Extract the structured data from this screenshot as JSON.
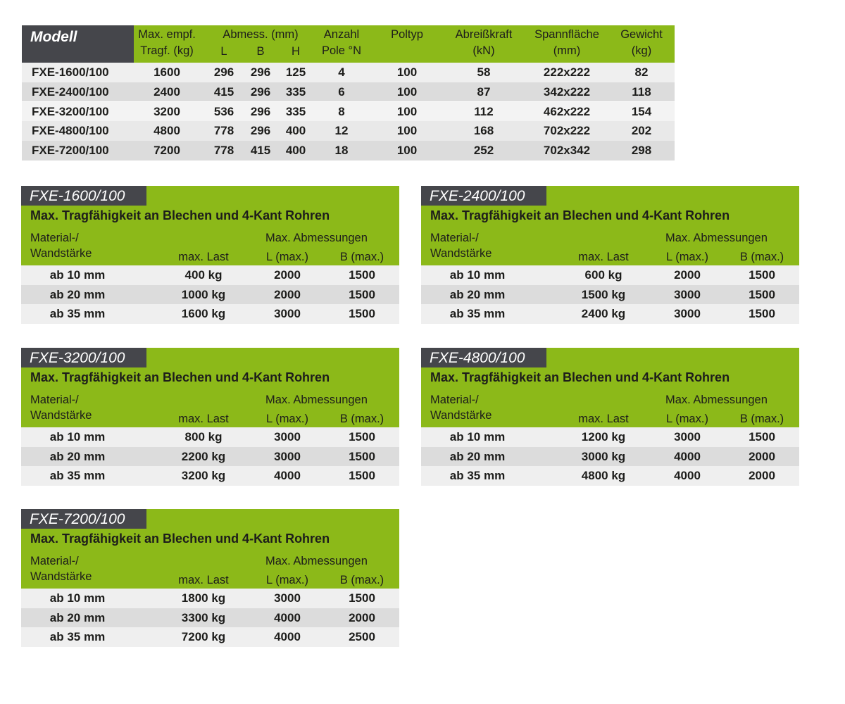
{
  "colors": {
    "green": "#8cb919",
    "dark": "#45464b",
    "row_light": "#efefef",
    "row_dark": "#dcdcdc"
  },
  "main_table": {
    "headers": {
      "model": "Modell",
      "capacity_1": "Max. empf.",
      "capacity_2": "Tragf. (kg)",
      "dims": "Abmess. (mm)",
      "L": "L",
      "B": "B",
      "H": "H",
      "poles_1": "Anzahl",
      "poles_2": "Pole °N",
      "pole_type": "Poltyp",
      "force_1": "Abreißkraft",
      "force_2": "(kN)",
      "area_1": "Spannfläche",
      "area_2": "(mm)",
      "weight_1": "Gewicht",
      "weight_2": "(kg)"
    },
    "rows": [
      [
        "FXE-1600/100",
        "1600",
        "296",
        "296",
        "125",
        "4",
        "100",
        "58",
        "222x222",
        "82"
      ],
      [
        "FXE-2400/100",
        "2400",
        "415",
        "296",
        "335",
        "6",
        "100",
        "87",
        "342x222",
        "118"
      ],
      [
        "FXE-3200/100",
        "3200",
        "536",
        "296",
        "335",
        "8",
        "100",
        "112",
        "462x222",
        "154"
      ],
      [
        "FXE-4800/100",
        "4800",
        "778",
        "296",
        "400",
        "12",
        "100",
        "168",
        "702x222",
        "202"
      ],
      [
        "FXE-7200/100",
        "7200",
        "778",
        "415",
        "400",
        "18",
        "100",
        "252",
        "702x342",
        "298"
      ]
    ]
  },
  "card_labels": {
    "subtitle": "Max. Tragfähigkeit an Blechen und 4-Kant Rohren",
    "material_1": "Material-/",
    "material_2": "Wandstärke",
    "max_dims": "Max. Abmessungen",
    "max_load": "max. Last",
    "L": "L (max.)",
    "B": "B (max.)"
  },
  "cards": [
    {
      "title": "FXE-1600/100",
      "rows": [
        [
          "ab 10 mm",
          "400 kg",
          "2000",
          "1500"
        ],
        [
          "ab 20 mm",
          "1000 kg",
          "2000",
          "1500"
        ],
        [
          "ab 35 mm",
          "1600 kg",
          "3000",
          "1500"
        ]
      ]
    },
    {
      "title": "FXE-2400/100",
      "rows": [
        [
          "ab 10 mm",
          "600 kg",
          "2000",
          "1500"
        ],
        [
          "ab 20 mm",
          "1500 kg",
          "3000",
          "1500"
        ],
        [
          "ab 35 mm",
          "2400 kg",
          "3000",
          "1500"
        ]
      ]
    },
    {
      "title": "FXE-3200/100",
      "rows": [
        [
          "ab 10 mm",
          "800 kg",
          "3000",
          "1500"
        ],
        [
          "ab 20 mm",
          "2200 kg",
          "3000",
          "1500"
        ],
        [
          "ab 35 mm",
          "3200 kg",
          "4000",
          "1500"
        ]
      ]
    },
    {
      "title": "FXE-4800/100",
      "rows": [
        [
          "ab 10 mm",
          "1200 kg",
          "3000",
          "1500"
        ],
        [
          "ab 20 mm",
          "3000 kg",
          "4000",
          "2000"
        ],
        [
          "ab 35 mm",
          "4800 kg",
          "4000",
          "2000"
        ]
      ]
    },
    {
      "title": "FXE-7200/100",
      "rows": [
        [
          "ab 10 mm",
          "1800 kg",
          "3000",
          "1500"
        ],
        [
          "ab 20 mm",
          "3300 kg",
          "4000",
          "2000"
        ],
        [
          "ab 35 mm",
          "7200 kg",
          "4000",
          "2500"
        ]
      ]
    }
  ]
}
